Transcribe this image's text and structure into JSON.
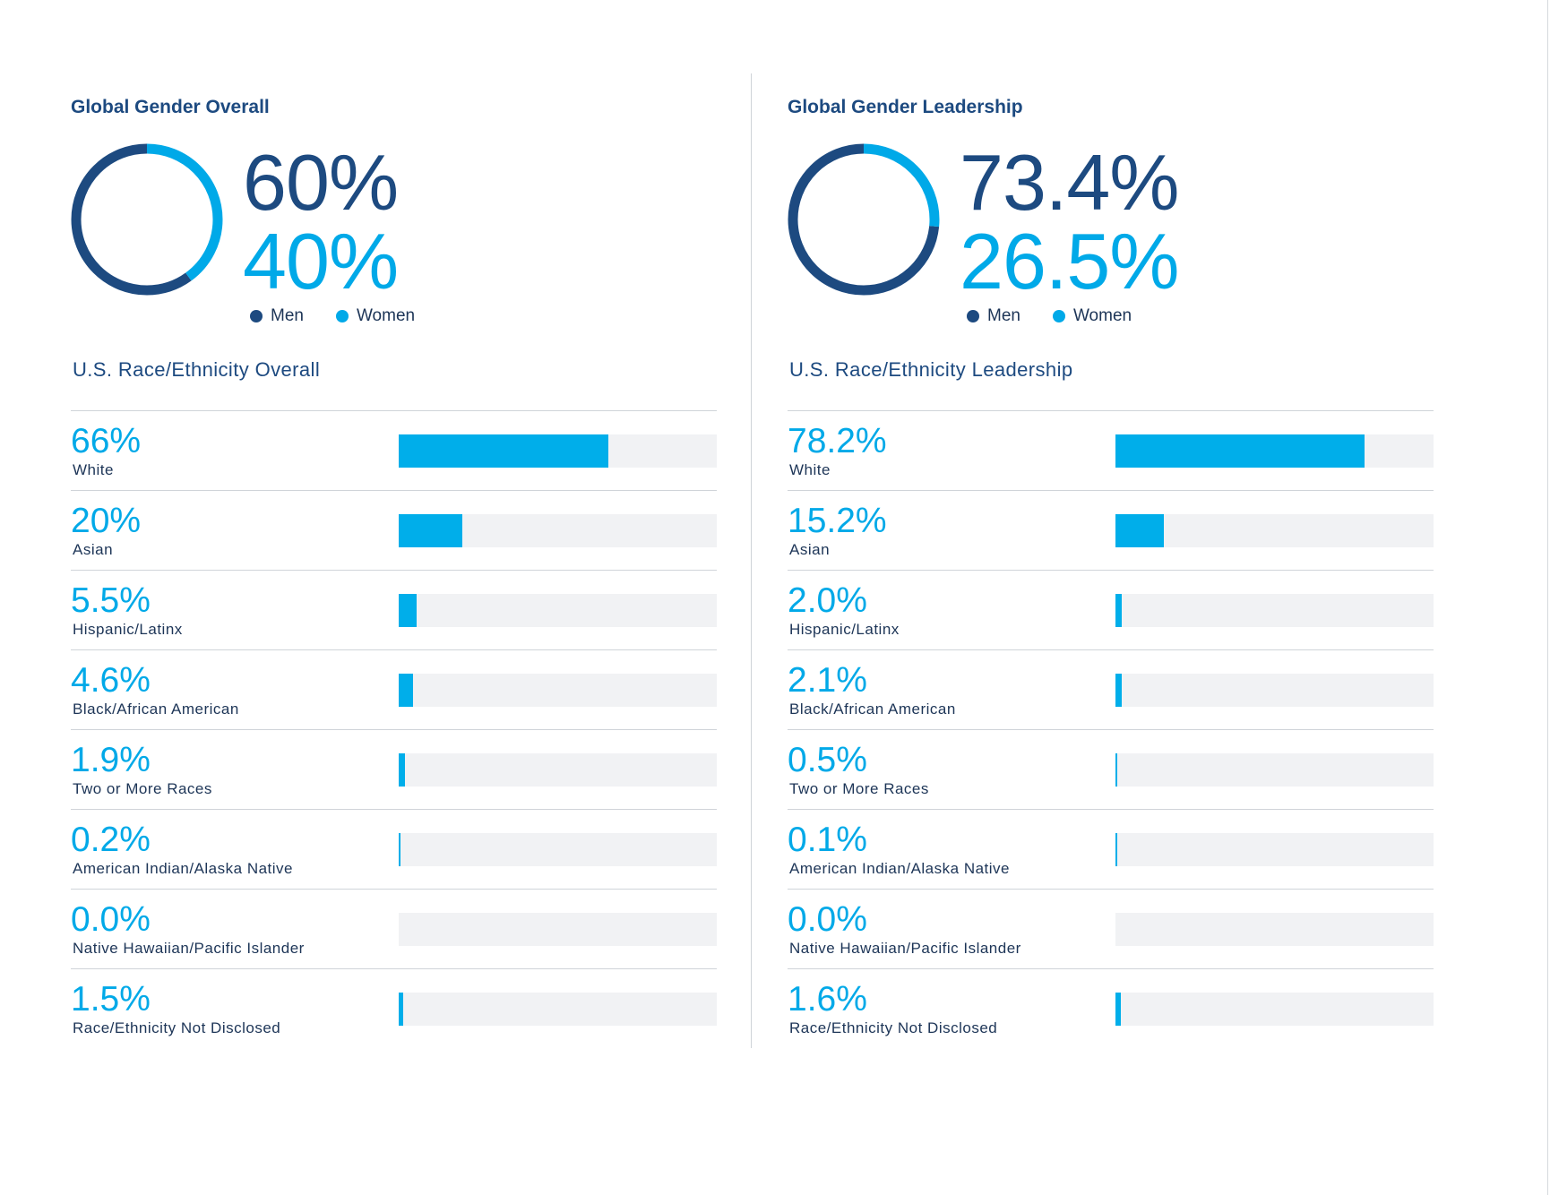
{
  "colors": {
    "men": "#1d4a80",
    "women": "#00a9e8",
    "bar_fill": "#00aeea",
    "bar_track": "#f1f2f4"
  },
  "legend": {
    "men": "Men",
    "women": "Women"
  },
  "chart_data": [
    {
      "type": "pie",
      "title": "Global Gender Overall",
      "categories": [
        "Men",
        "Women"
      ],
      "values": [
        60,
        40
      ],
      "labels": [
        "60%",
        "40%"
      ],
      "style": "donut"
    },
    {
      "type": "bar",
      "orientation": "horizontal",
      "title": "U.S. Race/Ethnicity Overall",
      "categories": [
        "White",
        "Asian",
        "Hispanic/Latinx",
        "Black/African American",
        "Two or More Races",
        "American Indian/Alaska Native",
        "Native Hawaiian/Pacific Islander",
        "Race/Ethnicity Not Disclosed"
      ],
      "values": [
        66,
        20,
        5.5,
        4.6,
        1.9,
        0.2,
        0.0,
        1.5
      ],
      "labels": [
        "66%",
        "20%",
        "5.5%",
        "4.6%",
        "1.9%",
        "0.2%",
        "0.0%",
        "1.5%"
      ],
      "xlim": [
        0,
        100
      ]
    },
    {
      "type": "pie",
      "title": "Global Gender Leadership",
      "categories": [
        "Men",
        "Women"
      ],
      "values": [
        73.4,
        26.5
      ],
      "labels": [
        "73.4%",
        "26.5%"
      ],
      "style": "donut"
    },
    {
      "type": "bar",
      "orientation": "horizontal",
      "title": "U.S. Race/Ethnicity Leadership",
      "categories": [
        "White",
        "Asian",
        "Hispanic/Latinx",
        "Black/African American",
        "Two or More Races",
        "American Indian/Alaska Native",
        "Native Hawaiian/Pacific Islander",
        "Race/Ethnicity Not Disclosed"
      ],
      "values": [
        78.2,
        15.2,
        2.0,
        2.1,
        0.5,
        0.1,
        0.0,
        1.6
      ],
      "labels": [
        "78.2%",
        "15.2%",
        "2.0%",
        "2.1%",
        "0.5%",
        "0.1%",
        "0.0%",
        "1.6%"
      ],
      "xlim": [
        0,
        100
      ]
    }
  ]
}
